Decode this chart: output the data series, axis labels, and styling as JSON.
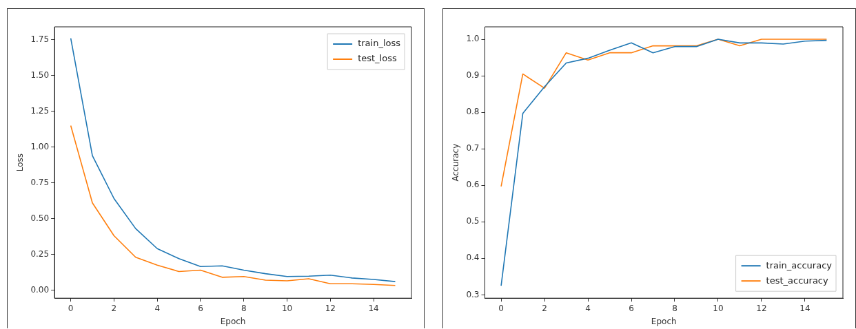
{
  "chart_data": [
    {
      "type": "line",
      "xlabel": "Epoch",
      "ylabel": "Loss",
      "x": [
        0,
        1,
        2,
        3,
        4,
        5,
        6,
        7,
        8,
        9,
        10,
        11,
        12,
        13,
        14,
        15
      ],
      "series": [
        {
          "name": "train_loss",
          "color": "#1f77b4",
          "values": [
            1.76,
            0.94,
            0.64,
            0.43,
            0.29,
            0.22,
            0.165,
            0.17,
            0.14,
            0.115,
            0.095,
            0.098,
            0.105,
            0.085,
            0.075,
            0.06
          ]
        },
        {
          "name": "test_loss",
          "color": "#ff7f0e",
          "values": [
            1.15,
            0.61,
            0.38,
            0.23,
            0.175,
            0.13,
            0.14,
            0.09,
            0.095,
            0.07,
            0.065,
            0.08,
            0.045,
            0.045,
            0.04,
            0.033
          ]
        }
      ],
      "xlim": [
        -0.75,
        15.75
      ],
      "xticks": [
        0,
        2,
        4,
        6,
        8,
        10,
        12,
        14
      ],
      "ylim": [
        -0.056,
        1.84
      ],
      "yticks": [
        {
          "value": 0,
          "label": "0.00"
        },
        {
          "value": 0.25,
          "label": "0.25"
        },
        {
          "value": 0.5,
          "label": "0.50"
        },
        {
          "value": 0.75,
          "label": "0.75"
        },
        {
          "value": 1,
          "label": "1.00"
        },
        {
          "value": 1.25,
          "label": "1.25"
        },
        {
          "value": 1.5,
          "label": "1.50"
        },
        {
          "value": 1.75,
          "label": "1.75"
        }
      ],
      "grid": false,
      "legend": "top right",
      "marker": "none",
      "line_style": "solid"
    },
    {
      "type": "line",
      "xlabel": "Epoch",
      "ylabel": "Accuracy",
      "x": [
        0,
        1,
        2,
        3,
        4,
        5,
        6,
        7,
        8,
        9,
        10,
        11,
        12,
        13,
        14,
        15
      ],
      "series": [
        {
          "name": "train_accuracy",
          "color": "#1f77b4",
          "values": [
            0.325,
            0.797,
            0.87,
            0.935,
            0.948,
            0.97,
            0.99,
            0.963,
            0.98,
            0.98,
            1.0,
            0.99,
            0.99,
            0.987,
            0.995,
            0.997
          ]
        },
        {
          "name": "test_accuracy",
          "color": "#ff7f0e",
          "values": [
            0.597,
            0.905,
            0.866,
            0.963,
            0.943,
            0.963,
            0.963,
            0.982,
            0.982,
            0.982,
            1.0,
            0.982,
            1.0,
            1.0,
            1.0,
            1.0
          ]
        }
      ],
      "xlim": [
        -0.75,
        15.75
      ],
      "xticks": [
        0,
        2,
        4,
        6,
        8,
        10,
        12,
        14
      ],
      "ylim": [
        0.291,
        1.034
      ],
      "yticks": [
        {
          "value": 0.3,
          "label": "0.3"
        },
        {
          "value": 0.4,
          "label": "0.4"
        },
        {
          "value": 0.5,
          "label": "0.5"
        },
        {
          "value": 0.6,
          "label": "0.6"
        },
        {
          "value": 0.7,
          "label": "0.7"
        },
        {
          "value": 0.8,
          "label": "0.8"
        },
        {
          "value": 0.9,
          "label": "0.9"
        },
        {
          "value": 1.0,
          "label": "1.0"
        }
      ],
      "grid": false,
      "legend": "bottom right",
      "marker": "none",
      "line_style": "solid"
    }
  ]
}
